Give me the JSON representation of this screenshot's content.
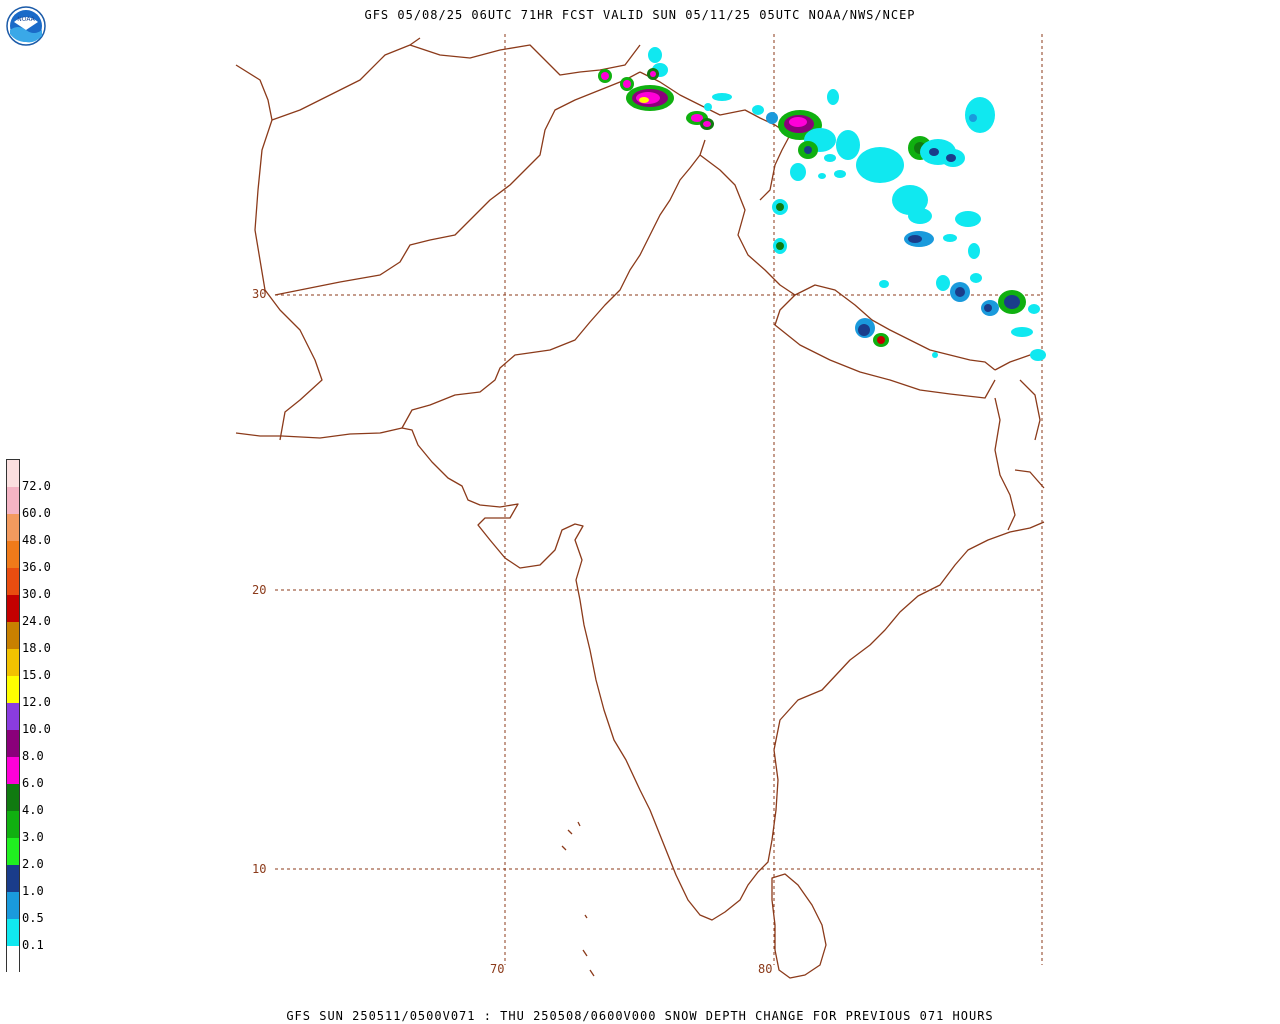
{
  "header": {
    "title": "GFS 05/08/25 06UTC 71HR FCST VALID SUN 05/11/25 05UTC NOAA/NWS/NCEP"
  },
  "footer": {
    "title": "GFS SUN 250511/0500V071 : THU 250508/0600V000 SNOW DEPTH CHANGE FOR PREVIOUS 071 HOURS"
  },
  "logo": {
    "text": "NOAA",
    "icon": "noaa-logo-icon"
  },
  "map": {
    "lat_labels": [
      "30",
      "20",
      "10"
    ],
    "lon_labels": [
      "70",
      "80"
    ],
    "colors": {
      "border": "#8b3a1a",
      "grid": "#8b3a1a"
    }
  },
  "legend": {
    "labels": [
      "72.0",
      "60.0",
      "48.0",
      "36.0",
      "30.0",
      "24.0",
      "18.0",
      "15.0",
      "12.0",
      "10.0",
      "8.0",
      "6.0",
      "4.0",
      "3.0",
      "2.0",
      "1.0",
      "0.5",
      "0.1"
    ],
    "colors": [
      "#fbe0e0",
      "#f4b4c4",
      "#f39a5e",
      "#f07a1a",
      "#e94d10",
      "#c40000",
      "#c88000",
      "#f2c200",
      "#ffff00",
      "#8a3ce0",
      "#8a007a",
      "#ff00d8",
      "#107a10",
      "#10b010",
      "#20f020",
      "#1a3c8a",
      "#1a9adc",
      "#10e8f0",
      "#ffffff"
    ]
  }
}
